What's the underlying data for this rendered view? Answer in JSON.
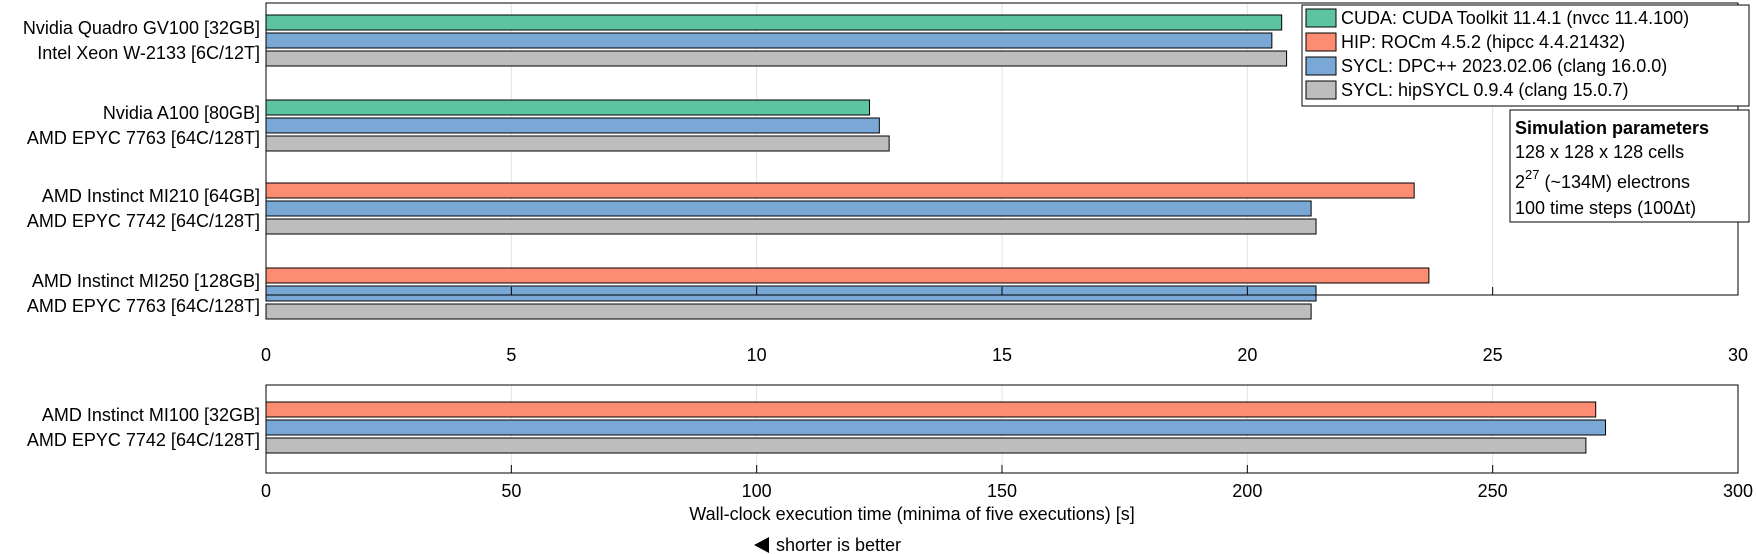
{
  "chart_data": [
    {
      "type": "bar",
      "orientation": "horizontal",
      "xlim": [
        0,
        30
      ],
      "xticks": [
        0,
        5,
        10,
        15,
        20,
        25,
        30
      ],
      "grid": true,
      "groups": [
        {
          "labels": [
            "Nvidia Quadro GV100 [32GB]",
            "Intel Xeon W-2133 [6C/12T]"
          ],
          "bars": [
            {
              "series": "cuda",
              "value": 20.7
            },
            {
              "series": "dpcpp",
              "value": 20.5
            },
            {
              "series": "hipsycl",
              "value": 20.8
            }
          ]
        },
        {
          "labels": [
            "Nvidia A100 [80GB]",
            "AMD EPYC 7763 [64C/128T]"
          ],
          "bars": [
            {
              "series": "cuda",
              "value": 12.3
            },
            {
              "series": "dpcpp",
              "value": 12.5
            },
            {
              "series": "hipsycl",
              "value": 12.7
            }
          ]
        },
        {
          "labels": [
            "AMD Instinct MI210 [64GB]",
            "AMD EPYC 7742 [64C/128T]"
          ],
          "bars": [
            {
              "series": "hip",
              "value": 23.4
            },
            {
              "series": "dpcpp",
              "value": 21.3
            },
            {
              "series": "hipsycl",
              "value": 21.4
            }
          ]
        },
        {
          "labels": [
            "AMD Instinct MI250 [128GB]",
            "AMD EPYC 7763 [64C/128T]"
          ],
          "bars": [
            {
              "series": "hip",
              "value": 23.7
            },
            {
              "series": "dpcpp",
              "value": 21.4
            },
            {
              "series": "hipsycl",
              "value": 21.3
            }
          ]
        }
      ]
    },
    {
      "type": "bar",
      "orientation": "horizontal",
      "xlim": [
        0,
        300
      ],
      "xticks": [
        0,
        50,
        100,
        150,
        200,
        250,
        300
      ],
      "grid": true,
      "xlabel": "Wall-clock execution time (minima of five executions) [s]",
      "groups": [
        {
          "labels": [
            "AMD Instinct MI100 [32GB]",
            "AMD EPYC 7742 [64C/128T]"
          ],
          "bars": [
            {
              "series": "hip",
              "value": 271
            },
            {
              "series": "dpcpp",
              "value": 273
            },
            {
              "series": "hipsycl",
              "value": 269
            }
          ]
        }
      ]
    }
  ],
  "series": {
    "cuda": {
      "name": "CUDA: CUDA Toolkit 11.4.1 (nvcc 11.4.100)",
      "color": "#5dc3a0"
    },
    "hip": {
      "name": "HIP: ROCm 4.5.2 (hipcc 4.4.21432)",
      "color": "#fc8d72"
    },
    "dpcpp": {
      "name": "SYCL: DPC++ 2023.02.06 (clang 16.0.0)",
      "color": "#7aa8d6"
    },
    "hipsycl": {
      "name": "SYCL: hipSYCL 0.9.4 (clang 15.0.7)",
      "color": "#bdbdbd"
    }
  },
  "legend_order": [
    "cuda",
    "hip",
    "dpcpp",
    "hipsycl"
  ],
  "legend_position": "top-right",
  "annotation": {
    "title": "Simulation parameters",
    "line1": "128 x 128 x 128 cells",
    "line2_base": "2",
    "line2_exp": "27",
    "line2_rest": " (~134M) electrons",
    "line3": "100 time steps (100Δt)"
  },
  "footer_note": "shorter is better"
}
